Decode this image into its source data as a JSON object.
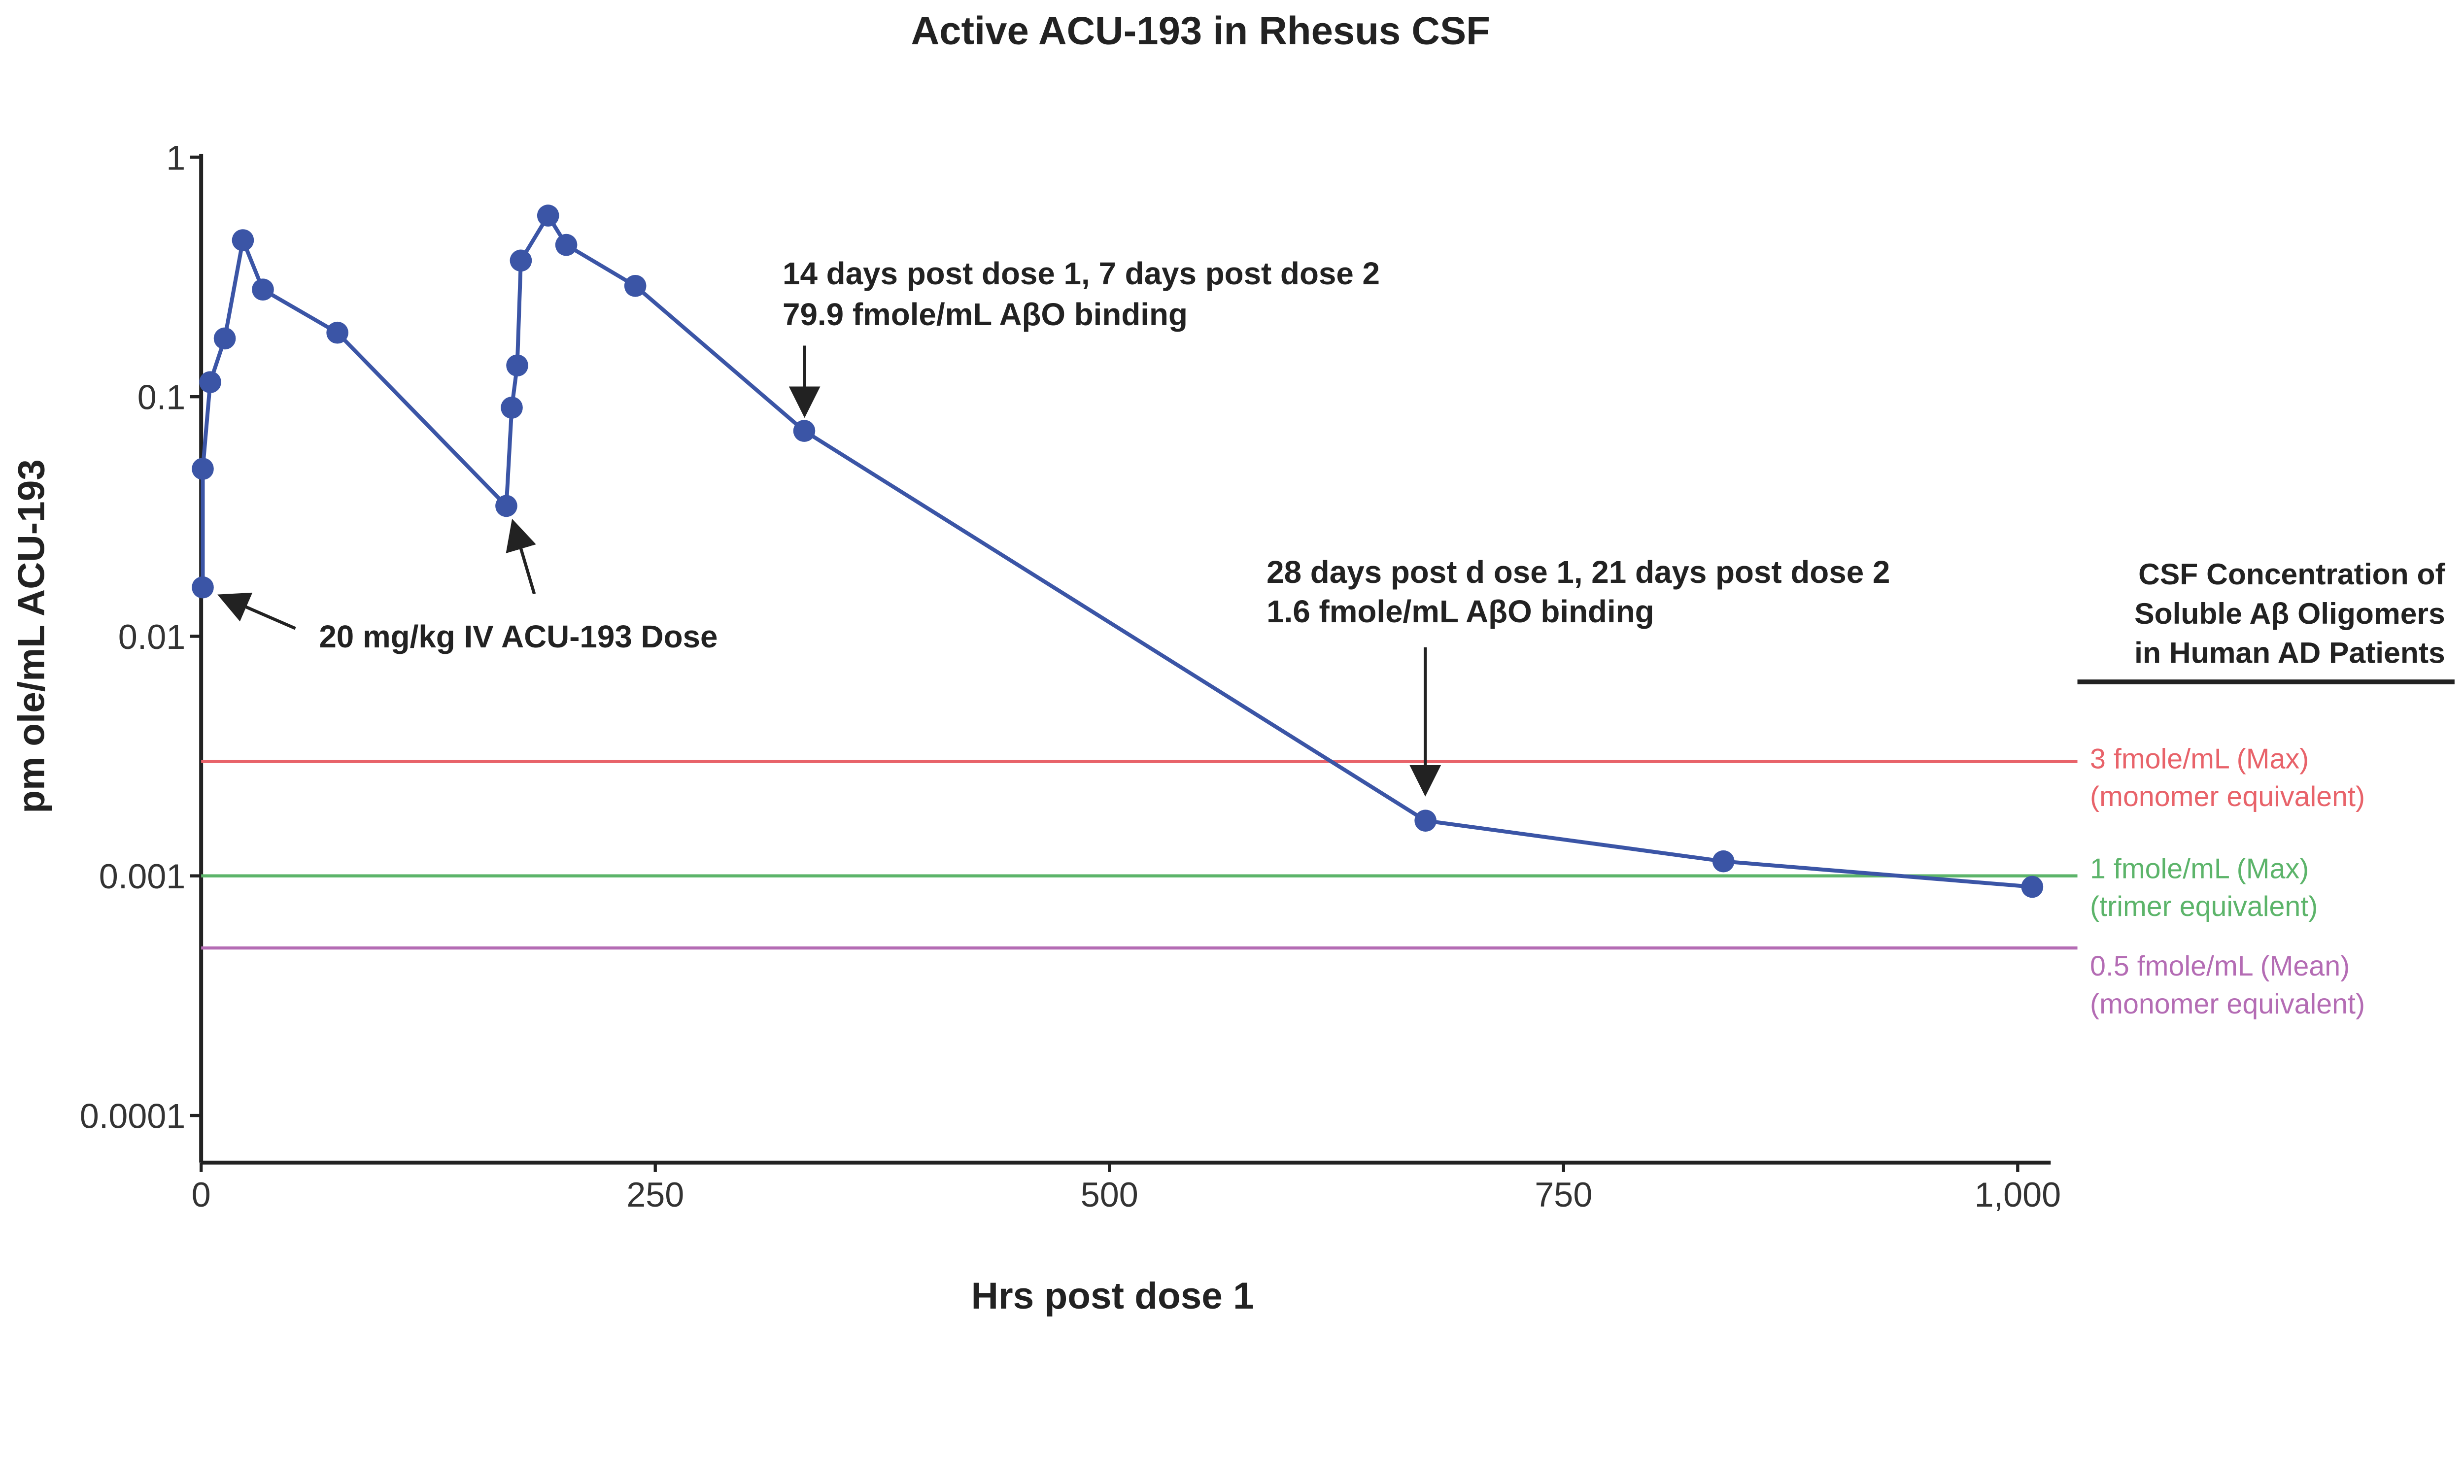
{
  "chart_data": {
    "type": "line",
    "title": "Active ACU-193 in Rhesus CSF",
    "xlabel": "Hrs post dose 1",
    "ylabel": "pm ole/mL ACU-193",
    "xlim": [
      0,
      1030
    ],
    "ylim": [
      0.0001,
      1
    ],
    "yscale": "log",
    "grid": false,
    "x_ticks": [
      0,
      250,
      500,
      750,
      1000
    ],
    "x_tick_labels": [
      "0",
      "250",
      "500",
      "750",
      "1,000"
    ],
    "y_ticks": [
      1,
      0.1,
      0.01,
      0.001,
      0.0001
    ],
    "y_tick_labels": [
      "1",
      "0.1",
      "0.01",
      "0.001",
      "0.0001"
    ],
    "series": [
      {
        "color": "#3b55a6",
        "x": [
          0.9,
          0.9,
          5,
          13,
          23,
          34,
          75,
          168,
          171,
          174,
          176,
          191,
          201,
          239,
          332,
          674,
          838,
          1008
        ],
        "y": [
          0.016,
          0.05,
          0.115,
          0.175,
          0.45,
          0.28,
          0.185,
          0.035,
          0.09,
          0.135,
          0.37,
          0.57,
          0.43,
          0.29,
          0.072,
          0.0017,
          0.00115,
          0.0009
        ]
      }
    ],
    "reference_lines": [
      {
        "value": 0.003,
        "color": "#e8636a",
        "label": [
          "3 fmole/mL (Max)",
          "(monomer equivalent)"
        ]
      },
      {
        "value": 0.001,
        "color": "#5cb46a",
        "label": [
          "1 fmole/mL (Max)",
          "(trimer equivalent)"
        ]
      },
      {
        "value": 0.0005,
        "color": "#b46cb4",
        "label": [
          "0.5 fmole/mL (Mean)",
          "(monomer equivalent)"
        ]
      }
    ],
    "reference_title": [
      "CSF Concentration of",
      "Soluble Aβ Oligomers",
      "in Human AD Patients"
    ],
    "annotations": [
      {
        "text": [
          "20 mg/kg IV ACU-193 Dose"
        ],
        "x": 0.9,
        "y": 0.016
      },
      {
        "text": [
          "14 days post dose 1, 7 days post dose 2",
          "79.9 fmole/mL AβO binding"
        ],
        "x": 332,
        "y": 0.072
      },
      {
        "text": [
          "28 days post d ose 1, 21 days post dose 2",
          "1.6 fmole/mL AβO binding"
        ],
        "x": 674,
        "y": 0.0017
      }
    ]
  }
}
